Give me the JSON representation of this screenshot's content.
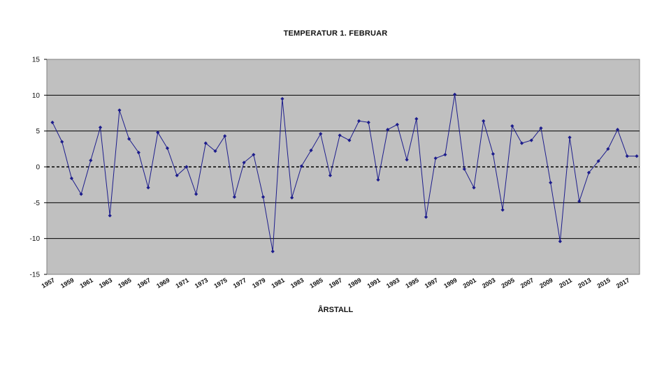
{
  "chart_data": {
    "type": "line",
    "title": "TEMPERATUR 1. FEBRUAR",
    "xlabel": "ÅRSTALL",
    "ylabel": "",
    "ylim": [
      -15,
      15
    ],
    "yticks": [
      15,
      10,
      5,
      0,
      -5,
      -10,
      -15
    ],
    "xtick_labels": [
      "1957",
      "1959",
      "1961",
      "1963",
      "1965",
      "1967",
      "1969",
      "1971",
      "1973",
      "1975",
      "1977",
      "1979",
      "1981",
      "1983",
      "1985",
      "1987",
      "1989",
      "1991",
      "1993",
      "1995",
      "1997",
      "1999",
      "2001",
      "2003",
      "2005",
      "2007",
      "2009",
      "2011",
      "2013",
      "2015",
      "2017"
    ],
    "x": [
      1957,
      1958,
      1959,
      1960,
      1961,
      1962,
      1963,
      1964,
      1965,
      1966,
      1967,
      1968,
      1969,
      1970,
      1971,
      1972,
      1973,
      1974,
      1975,
      1976,
      1977,
      1978,
      1979,
      1980,
      1981,
      1982,
      1983,
      1984,
      1985,
      1986,
      1987,
      1988,
      1989,
      1990,
      1991,
      1992,
      1993,
      1994,
      1995,
      1996,
      1997,
      1998,
      1999,
      2000,
      2001,
      2002,
      2003,
      2004,
      2005,
      2006,
      2007,
      2008,
      2009,
      2010,
      2011,
      2012,
      2013,
      2014,
      2015,
      2016,
      2017,
      2018
    ],
    "series": [
      {
        "values": [
          6.2,
          3.5,
          -1.6,
          -3.8,
          0.9,
          5.5,
          -6.8,
          7.9,
          3.9,
          2.0,
          -2.9,
          4.8,
          2.6,
          -1.2,
          0.0,
          -3.8,
          3.3,
          2.2,
          4.3,
          -4.2,
          0.6,
          1.7,
          -4.2,
          -11.8,
          9.5,
          -4.3,
          0.1,
          2.3,
          4.6,
          -1.2,
          4.4,
          3.7,
          6.4,
          6.2,
          -1.8,
          5.2,
          5.9,
          1.0,
          6.7,
          -7.0,
          1.2,
          1.7,
          10.1,
          -0.3,
          -2.9,
          6.4,
          1.8,
          -6.0,
          5.7,
          3.3,
          3.7,
          5.4,
          -2.2,
          -10.4,
          4.1,
          -4.8,
          -0.8,
          0.8,
          2.5,
          5.2,
          1.5,
          1.5
        ]
      }
    ],
    "grid": "horizontal",
    "legend": "none",
    "colors": {
      "plot_background": "#c0c0c0",
      "line": "#1c1c8c",
      "marker": "#1c1c8c",
      "gridline": "#000000"
    }
  }
}
